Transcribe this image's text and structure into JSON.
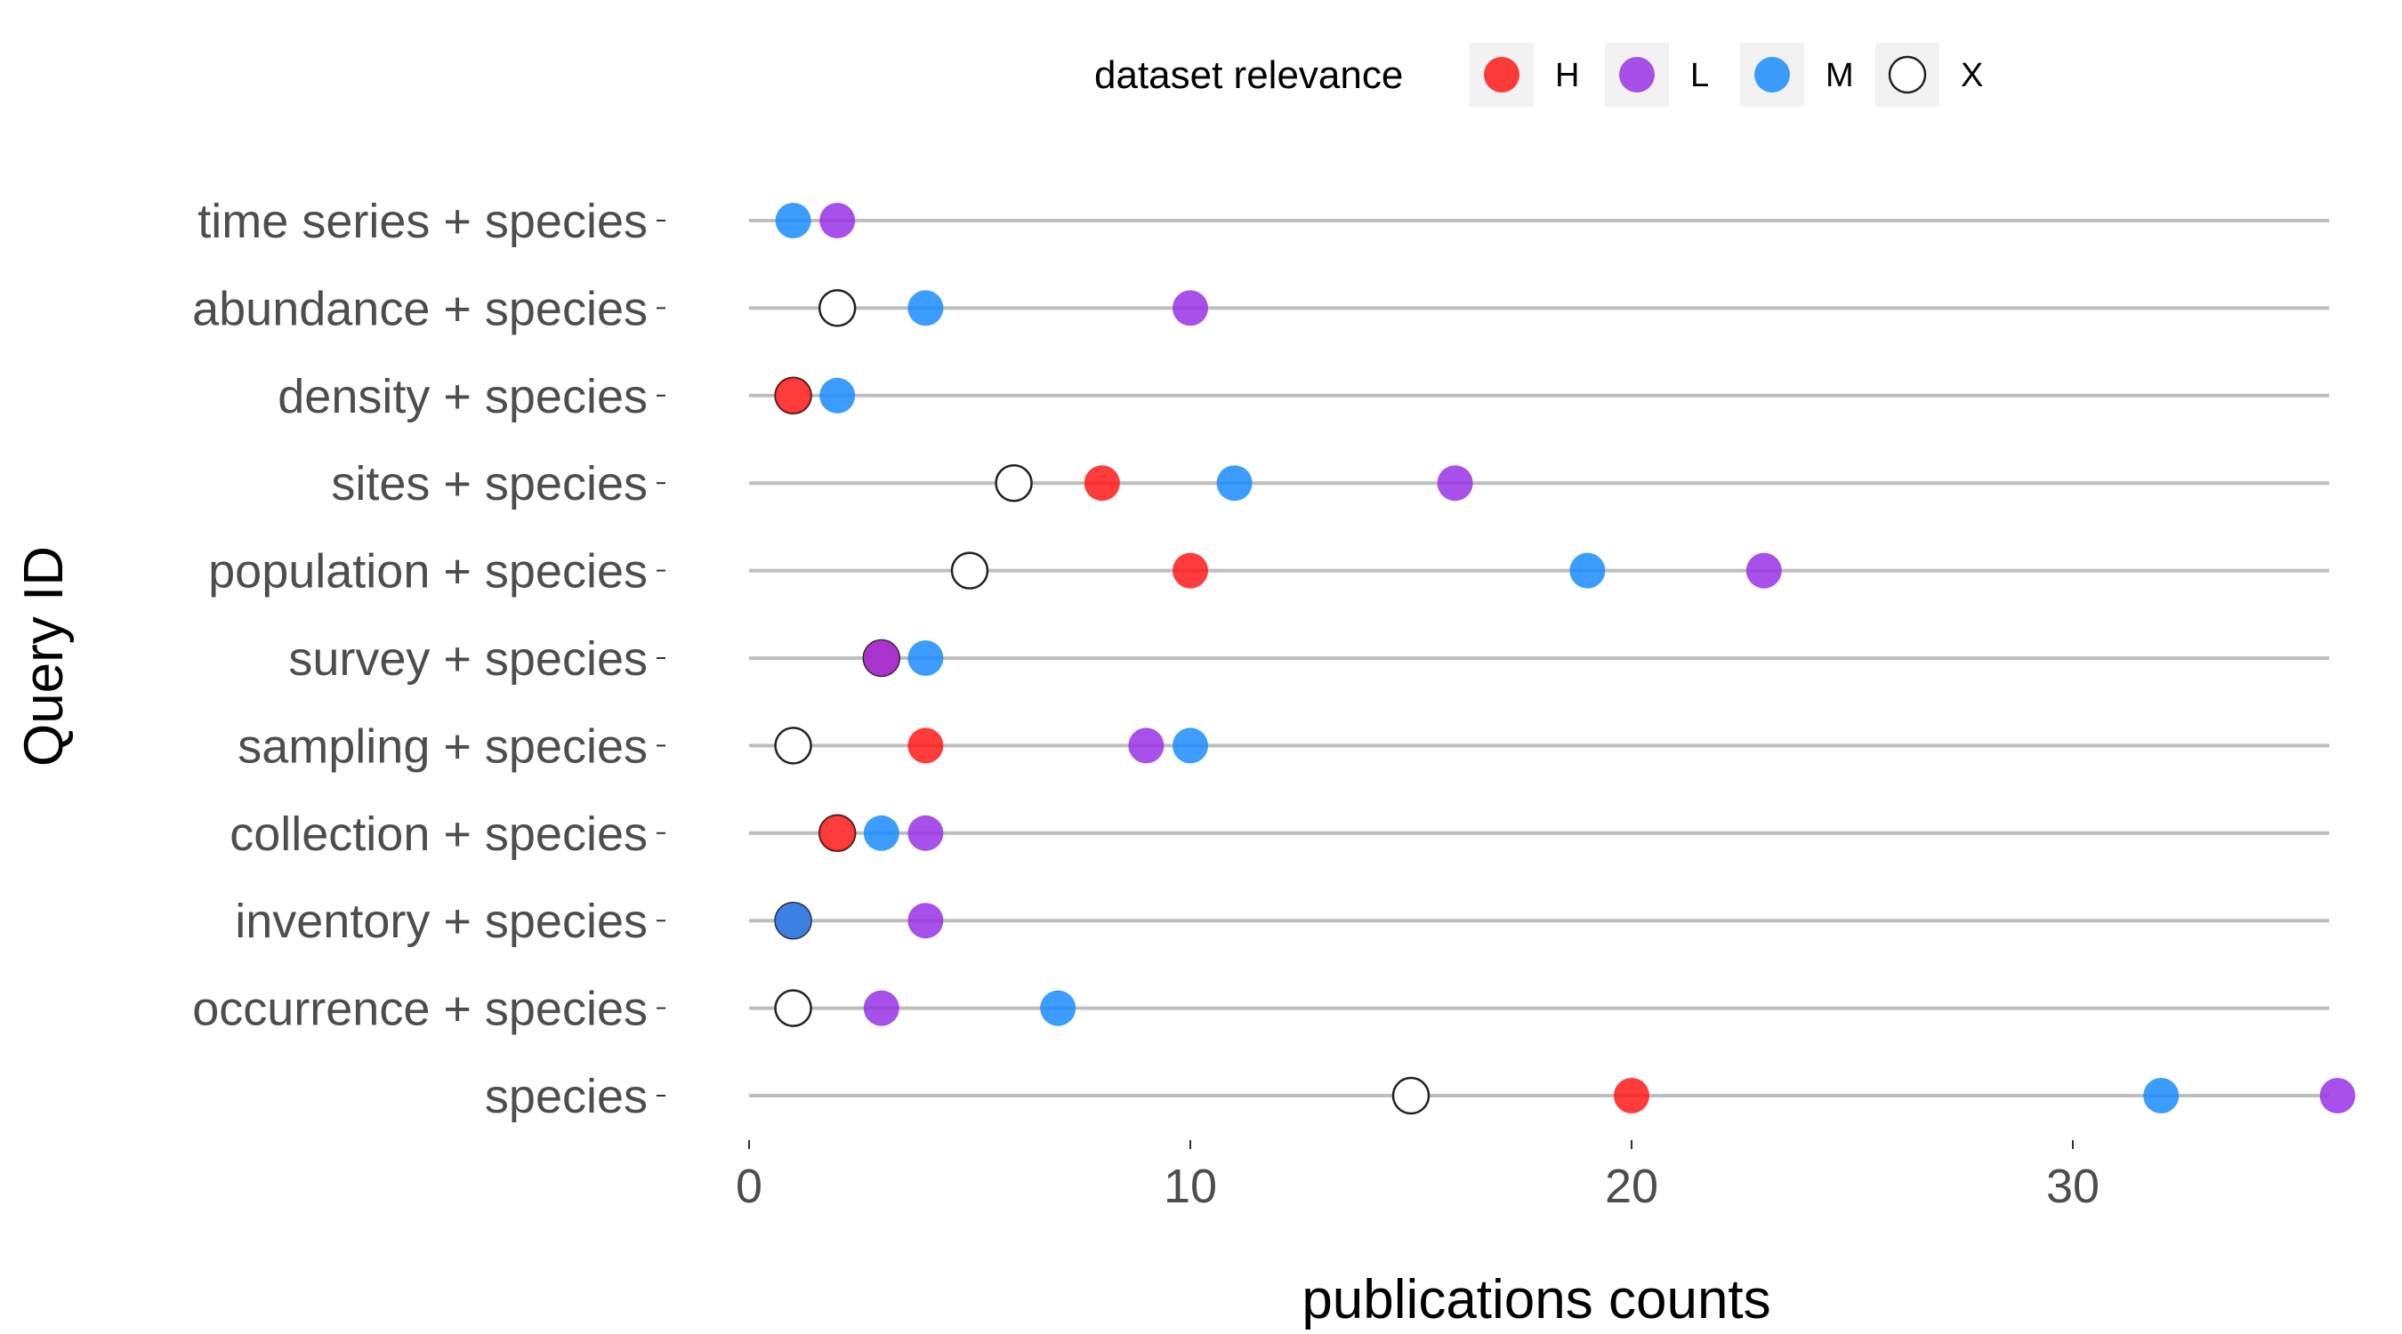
{
  "chart_data": {
    "type": "scatter",
    "xlabel": "publications counts",
    "ylabel": "Query ID",
    "xlim": [
      0,
      36
    ],
    "x_ticks": [
      0,
      10,
      20,
      30
    ],
    "categories": [
      "time series + species",
      "abundance + species",
      "density + species",
      "sites + species",
      "population + species",
      "survey + species",
      "sampling + species",
      "collection + species",
      "inventory + species",
      "occurrence + species",
      "species"
    ],
    "legend": {
      "title": "dataset relevance",
      "position": "top",
      "entries": [
        {
          "label": "H",
          "color": "#ff1a1a",
          "filled": true
        },
        {
          "label": "L",
          "color": "#9933e6",
          "filled": true
        },
        {
          "label": "M",
          "color": "#1a8cff",
          "filled": true
        },
        {
          "label": "X",
          "color": "#ffffff",
          "filled": false
        }
      ]
    },
    "series": [
      {
        "name": "H",
        "color": "#ff1a1a",
        "values": [
          null,
          null,
          1,
          8,
          10,
          3,
          4,
          2,
          1,
          null,
          20
        ]
      },
      {
        "name": "L",
        "color": "#9933e6",
        "values": [
          2,
          10,
          null,
          16,
          23,
          3,
          9,
          4,
          4,
          3,
          36
        ]
      },
      {
        "name": "M",
        "color": "#1a8cff",
        "values": [
          1,
          4,
          2,
          11,
          19,
          4,
          10,
          3,
          1,
          7,
          32
        ]
      },
      {
        "name": "X",
        "color": "#ffffff",
        "values": [
          null,
          2,
          1,
          6,
          5,
          3,
          1,
          2,
          1,
          1,
          15
        ]
      }
    ],
    "grid": "horizontal lines per category",
    "background": "#ffffff"
  }
}
